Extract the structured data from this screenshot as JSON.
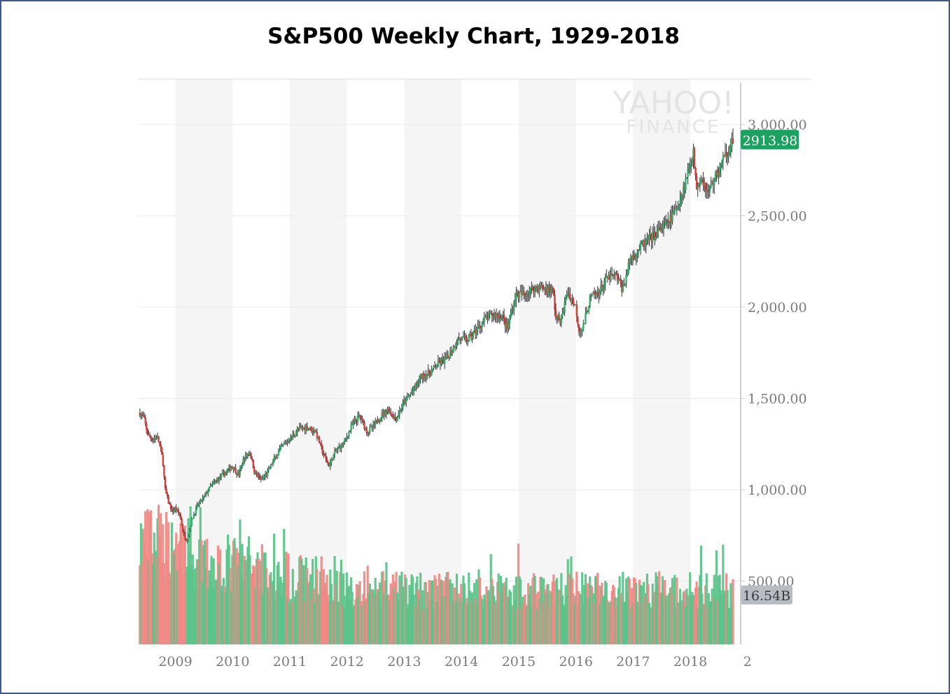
{
  "title": "S&P500 Weekly Chart, 1929-2018",
  "watermark": {
    "line1": "YAHOO!",
    "line2": "FINANCE"
  },
  "chart_data": {
    "type": "candlestick",
    "title": "S&P500 Weekly Chart, 1929-2018",
    "x_tick_labels": [
      "2009",
      "2010",
      "2011",
      "2012",
      "2013",
      "2014",
      "2015",
      "2016",
      "2017",
      "2018",
      "2"
    ],
    "y_tick_labels": [
      "3,000.00",
      "2,500.00",
      "2,000.00",
      "1,500.00",
      "1,000.00",
      "500.00"
    ],
    "ylim": [
      200,
      3250
    ],
    "last_price": {
      "label": "2913.98",
      "value": 2913.98,
      "color": "#1aa260"
    },
    "last_volume": {
      "label": "16.54B",
      "color": "#b8bcc4"
    },
    "up_color": "#2db36b",
    "down_color": "#e03a3a",
    "price_series": {
      "name": "",
      "points": [
        [
          2008.38,
          1420
        ],
        [
          2008.45,
          1390
        ],
        [
          2008.52,
          1300
        ],
        [
          2008.6,
          1275
        ],
        [
          2008.68,
          1290
        ],
        [
          2008.73,
          1240
        ],
        [
          2008.78,
          1160
        ],
        [
          2008.82,
          1000
        ],
        [
          2008.88,
          930
        ],
        [
          2008.95,
          880
        ],
        [
          2009.0,
          900
        ],
        [
          2009.08,
          860
        ],
        [
          2009.14,
          760
        ],
        [
          2009.2,
          720
        ],
        [
          2009.28,
          830
        ],
        [
          2009.38,
          910
        ],
        [
          2009.5,
          960
        ],
        [
          2009.62,
          1020
        ],
        [
          2009.75,
          1060
        ],
        [
          2009.9,
          1100
        ],
        [
          2010.0,
          1130
        ],
        [
          2010.1,
          1080
        ],
        [
          2010.2,
          1170
        ],
        [
          2010.3,
          1210
        ],
        [
          2010.38,
          1100
        ],
        [
          2010.5,
          1050
        ],
        [
          2010.6,
          1090
        ],
        [
          2010.7,
          1150
        ],
        [
          2010.85,
          1230
        ],
        [
          2011.0,
          1280
        ],
        [
          2011.15,
          1330
        ],
        [
          2011.3,
          1345
        ],
        [
          2011.45,
          1320
        ],
        [
          2011.58,
          1200
        ],
        [
          2011.68,
          1130
        ],
        [
          2011.8,
          1210
        ],
        [
          2011.95,
          1260
        ],
        [
          2012.1,
          1360
        ],
        [
          2012.22,
          1405
        ],
        [
          2012.35,
          1320
        ],
        [
          2012.45,
          1340
        ],
        [
          2012.6,
          1410
        ],
        [
          2012.72,
          1440
        ],
        [
          2012.85,
          1385
        ],
        [
          2013.0,
          1480
        ],
        [
          2013.15,
          1540
        ],
        [
          2013.3,
          1620
        ],
        [
          2013.45,
          1640
        ],
        [
          2013.6,
          1690
        ],
        [
          2013.75,
          1720
        ],
        [
          2013.95,
          1830
        ],
        [
          2014.1,
          1820
        ],
        [
          2014.25,
          1870
        ],
        [
          2014.4,
          1930
        ],
        [
          2014.55,
          1960
        ],
        [
          2014.72,
          1950
        ],
        [
          2014.8,
          1880
        ],
        [
          2014.95,
          2070
        ],
        [
          2015.1,
          2070
        ],
        [
          2015.3,
          2110
        ],
        [
          2015.5,
          2100
        ],
        [
          2015.6,
          2090
        ],
        [
          2015.65,
          1940
        ],
        [
          2015.75,
          1930
        ],
        [
          2015.85,
          2090
        ],
        [
          2016.0,
          2000
        ],
        [
          2016.05,
          1880
        ],
        [
          2016.12,
          1880
        ],
        [
          2016.25,
          2050
        ],
        [
          2016.4,
          2080
        ],
        [
          2016.55,
          2160
        ],
        [
          2016.7,
          2170
        ],
        [
          2016.82,
          2100
        ],
        [
          2016.95,
          2260
        ],
        [
          2017.1,
          2320
        ],
        [
          2017.25,
          2360
        ],
        [
          2017.45,
          2420
        ],
        [
          2017.6,
          2460
        ],
        [
          2017.75,
          2530
        ],
        [
          2017.9,
          2670
        ],
        [
          2018.05,
          2860
        ],
        [
          2018.1,
          2660
        ],
        [
          2018.2,
          2720
        ],
        [
          2018.3,
          2620
        ],
        [
          2018.45,
          2720
        ],
        [
          2018.6,
          2820
        ],
        [
          2018.72,
          2900
        ],
        [
          2018.75,
          2914
        ]
      ]
    },
    "volume_series": {
      "name": "",
      "ylim": [
        0,
        1800
      ]
    }
  }
}
